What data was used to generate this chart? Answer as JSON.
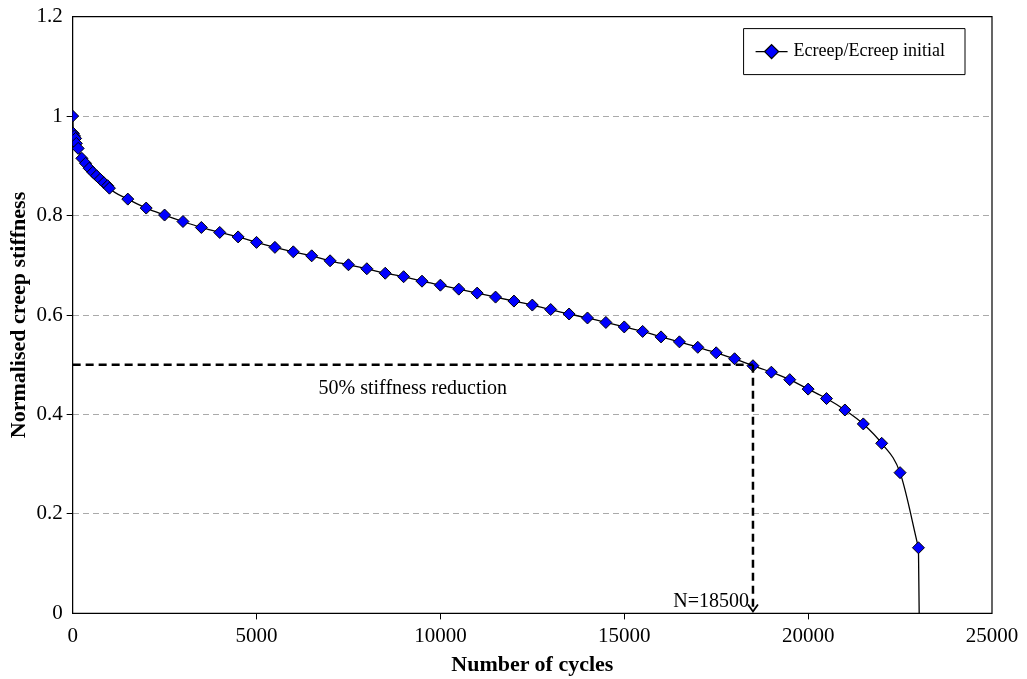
{
  "chart_data": {
    "type": "line",
    "xlabel": "Number of cycles",
    "ylabel": "Normalised creep stiffness",
    "xlim": [
      0,
      25000
    ],
    "xticks": [
      0,
      5000,
      10000,
      15000,
      20000,
      25000
    ],
    "ylim": [
      0,
      1.2
    ],
    "yticks": [
      0,
      0.2,
      0.4,
      0.6,
      0.8,
      1,
      1.2
    ],
    "grid": "y",
    "legend": "top right",
    "series": [
      {
        "name": "Ecreep/Ecreep initial",
        "color": "#0000ff",
        "marker": "diamond",
        "x": [
          0,
          20,
          50,
          80,
          100,
          150,
          250,
          350,
          450,
          550,
          650,
          750,
          850,
          950,
          1000,
          1500,
          2000,
          2500,
          3000,
          3500,
          4000,
          4500,
          5000,
          5500,
          6000,
          6500,
          7000,
          7500,
          8000,
          8500,
          9000,
          9500,
          10000,
          10500,
          11000,
          11500,
          12000,
          12500,
          13000,
          13500,
          14000,
          14500,
          15000,
          15500,
          16000,
          16500,
          17000,
          17500,
          18000,
          18500,
          19000,
          19500,
          20000,
          20500,
          21000,
          21500,
          22000,
          22500,
          23000
        ],
        "values": [
          1.0,
          0.965,
          0.96,
          0.955,
          0.945,
          0.935,
          0.915,
          0.905,
          0.895,
          0.887,
          0.88,
          0.873,
          0.866,
          0.86,
          0.855,
          0.833,
          0.815,
          0.801,
          0.788,
          0.776,
          0.766,
          0.757,
          0.746,
          0.736,
          0.727,
          0.719,
          0.709,
          0.701,
          0.693,
          0.684,
          0.677,
          0.668,
          0.66,
          0.652,
          0.644,
          0.636,
          0.628,
          0.62,
          0.611,
          0.602,
          0.594,
          0.585,
          0.576,
          0.567,
          0.556,
          0.546,
          0.535,
          0.524,
          0.512,
          0.498,
          0.485,
          0.47,
          0.451,
          0.432,
          0.409,
          0.381,
          0.342,
          0.283,
          0.132
        ]
      },
      {
        "color": "#000000",
        "marker": "none",
        "x": [
          23000,
          23020
        ],
        "values": [
          0.132,
          0
        ]
      }
    ],
    "ref_lines": [
      {
        "axis": "y",
        "value": 0.5,
        "label": "50% stiffness reduction",
        "color": "#000000",
        "line_style": "dashed"
      },
      {
        "axis": "x",
        "value": 18500,
        "label": "N=18500",
        "color": "#000000",
        "line_style": "dashed"
      }
    ]
  }
}
